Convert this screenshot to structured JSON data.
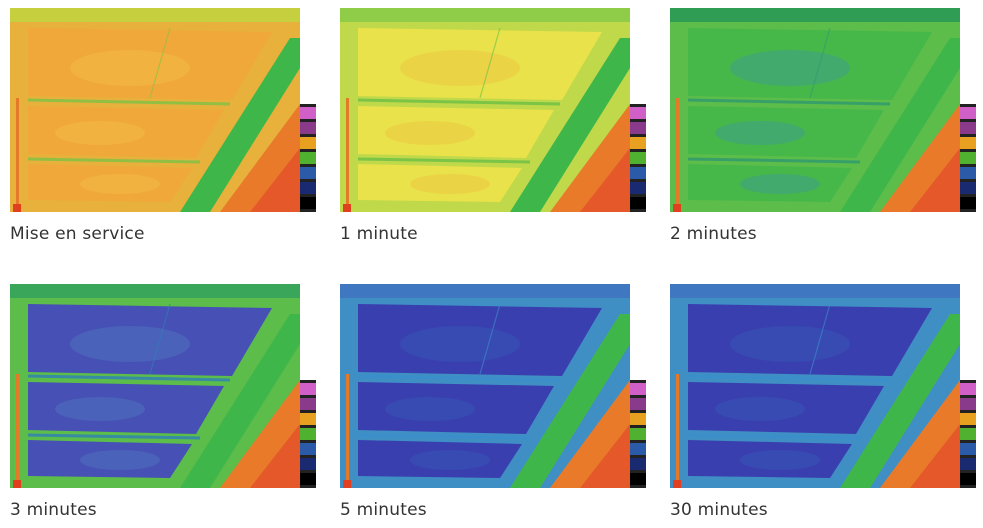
{
  "panels": [
    {
      "caption": "Mise en service",
      "state": "warm"
    },
    {
      "caption": "1 minute",
      "state": "yellow"
    },
    {
      "caption": "2 minutes",
      "state": "green"
    },
    {
      "caption": "3 minutes",
      "state": "mixed-blue"
    },
    {
      "caption": "5 minutes",
      "state": "blue"
    },
    {
      "caption": "30 minutes",
      "state": "blue"
    }
  ],
  "scale_bar_colors": [
    "#ffffff",
    "#d060c8",
    "#8a3a8a",
    "#e8a020",
    "#50b030",
    "#2a5aa8",
    "#1a2a70",
    "#000000"
  ],
  "colors": {
    "ground_orange": "#e97a2a",
    "wall_green": "#3fb64a",
    "panel_warm": "#f0a83a",
    "panel_yellow": "#e9e24a",
    "panel_green": "#46b84a",
    "panel_blue": "#3a3fb0"
  }
}
